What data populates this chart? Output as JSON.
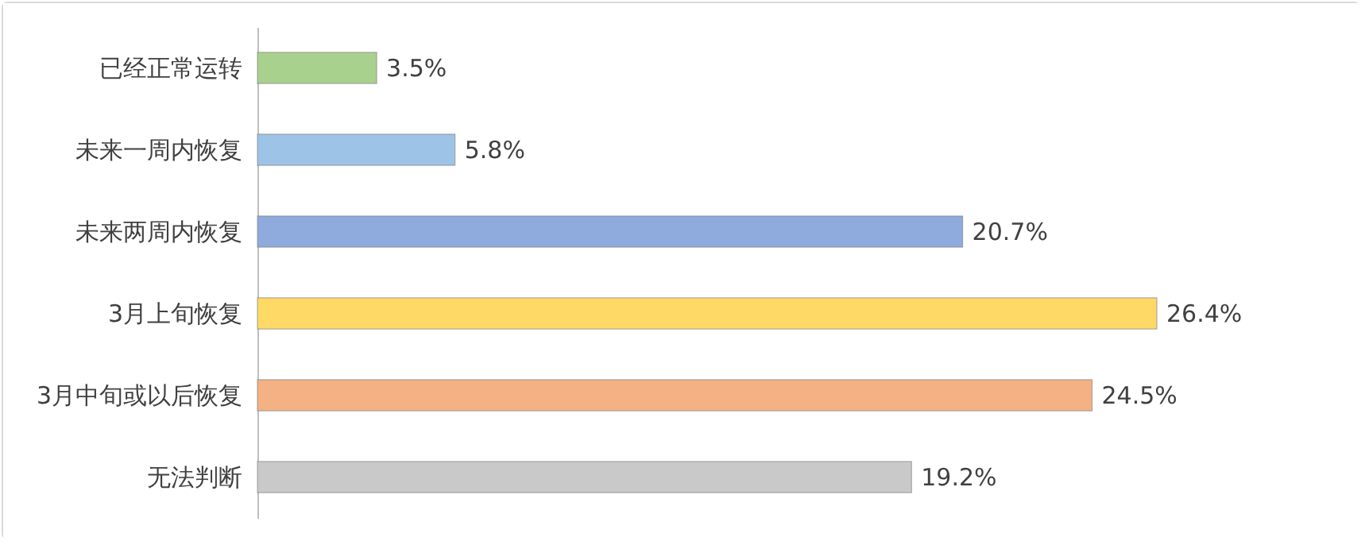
{
  "chart_data": {
    "type": "bar",
    "orientation": "horizontal",
    "legend": false,
    "categories": [
      "已经正常运转",
      "未来一周内恢复",
      "未来两周内恢复",
      "3月上旬恢复",
      "3月中旬或以后恢复",
      "无法判断"
    ],
    "values": [
      3.5,
      5.8,
      20.7,
      26.4,
      24.5,
      19.2
    ],
    "value_labels": [
      "3.5%",
      "5.8%",
      "20.7%",
      "26.4%",
      "24.5%",
      "19.2%"
    ],
    "colors": [
      "#a9d18e",
      "#9dc3e6",
      "#8faadc",
      "#ffd966",
      "#f4b183",
      "#c9c9c9"
    ]
  }
}
